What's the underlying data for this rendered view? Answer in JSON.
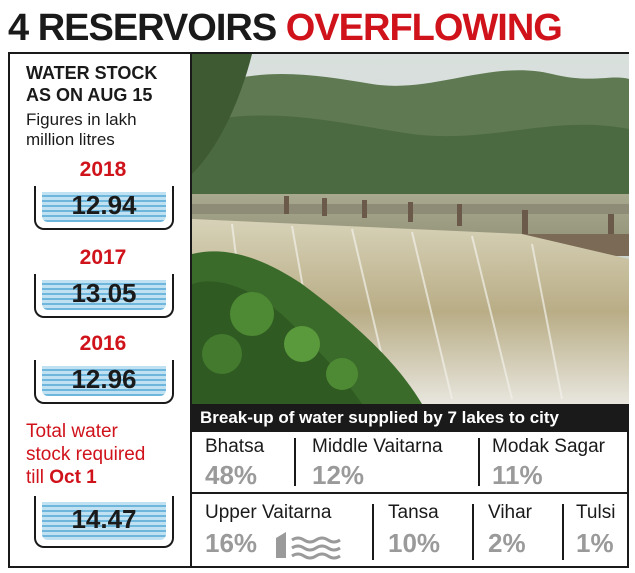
{
  "headline": {
    "part1": "4 RESERVOIRS",
    "part2": "OVERFLOWING"
  },
  "stock": {
    "title_line1": "WATER STOCK",
    "title_line2": "AS ON AUG 15",
    "sub_line1": "Figures in lakh",
    "sub_line2": "million litres",
    "years": [
      {
        "year": "2018",
        "value": "12.94"
      },
      {
        "year": "2017",
        "value": "13.05"
      },
      {
        "year": "2016",
        "value": "12.96"
      }
    ],
    "required_line1": "Total water",
    "required_line2": "stock required",
    "required_line3_a": "till ",
    "required_line3_b": "Oct 1",
    "required_value": "14.47"
  },
  "caption": "Break-up of water supplied by 7 lakes to city",
  "lakes": [
    {
      "name": "Bhatsa",
      "share": "48%"
    },
    {
      "name": "Middle Vaitarna",
      "share": "12%"
    },
    {
      "name": "Modak Sagar",
      "share": "11%"
    },
    {
      "name": "Upper Vaitarna",
      "share": "16%"
    },
    {
      "name": "Tansa",
      "share": "10%"
    },
    {
      "name": "Vihar",
      "share": "2%"
    },
    {
      "name": "Tulsi",
      "share": "1%"
    }
  ],
  "colors": {
    "accent_red": "#d0121b",
    "water_blue": "#6fb6dc",
    "percent_grey": "#9a9a9a"
  },
  "icons": [
    "water-waves-icon",
    "dam-photo"
  ]
}
